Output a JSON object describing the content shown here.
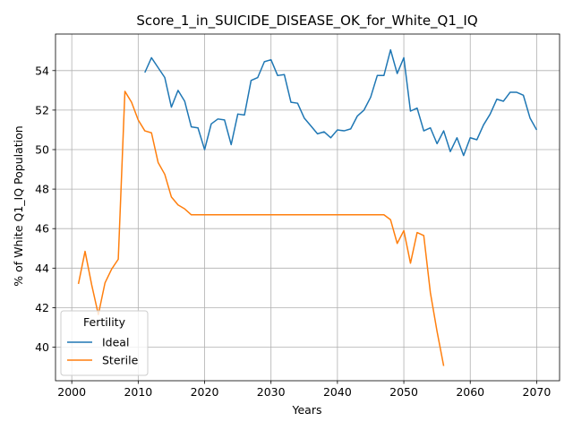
{
  "chart_data": {
    "type": "line",
    "title": "Score_1_in_SUICIDE_DISEASE_OK_for_White_Q1_IQ",
    "xlabel": "Years",
    "ylabel": "% of White Q1_IQ Population",
    "xlim": [
      1997.55,
      2073.45
    ],
    "ylim": [
      38.3,
      55.85
    ],
    "xticks": [
      2000,
      2010,
      2020,
      2030,
      2040,
      2050,
      2060,
      2070
    ],
    "yticks": [
      40,
      42,
      44,
      46,
      48,
      50,
      52,
      54
    ],
    "grid": true,
    "legend": {
      "title": "Fertility",
      "placement": "lower-left"
    },
    "series": [
      {
        "name": "Ideal",
        "color": "#1f77b4",
        "x": [
          2011,
          2012,
          2013,
          2014,
          2015,
          2016,
          2017,
          2018,
          2019,
          2020,
          2021,
          2022,
          2023,
          2024,
          2025,
          2026,
          2027,
          2028,
          2029,
          2030,
          2031,
          2032,
          2033,
          2034,
          2035,
          2036,
          2037,
          2038,
          2039,
          2040,
          2041,
          2042,
          2043,
          2044,
          2045,
          2046,
          2047,
          2048,
          2049,
          2050,
          2051,
          2052,
          2053,
          2054,
          2055,
          2056,
          2057,
          2058,
          2059,
          2060,
          2061,
          2062,
          2063,
          2064,
          2065,
          2066,
          2067,
          2068,
          2069,
          2070
        ],
        "y": [
          53.9,
          54.65,
          54.15,
          53.65,
          52.15,
          53.0,
          52.45,
          51.15,
          51.1,
          50.0,
          51.3,
          51.55,
          51.5,
          50.25,
          51.8,
          51.75,
          53.5,
          53.65,
          54.45,
          54.55,
          53.75,
          53.8,
          52.4,
          52.35,
          51.6,
          51.2,
          50.8,
          50.9,
          50.6,
          51.0,
          50.95,
          51.05,
          51.7,
          52.0,
          52.65,
          53.75,
          53.75,
          55.05,
          53.85,
          54.65,
          51.95,
          52.1,
          50.95,
          51.1,
          50.3,
          50.95,
          49.9,
          50.6,
          49.7,
          50.6,
          50.5,
          51.25,
          51.8,
          52.55,
          52.45,
          52.9,
          52.9,
          52.75,
          51.6,
          51.0
        ]
      },
      {
        "name": "Sterile",
        "color": "#ff7f0e",
        "x": [
          2001,
          2002,
          2003,
          2004,
          2005,
          2006,
          2007,
          2008,
          2009,
          2010,
          2011,
          2012,
          2013,
          2014,
          2015,
          2016,
          2017,
          2018,
          2019,
          2020,
          2030,
          2040,
          2047,
          2048,
          2049,
          2050,
          2051,
          2052,
          2053,
          2054,
          2055,
          2056
        ],
        "y": [
          43.2,
          44.85,
          43.15,
          41.65,
          43.25,
          43.95,
          44.45,
          52.95,
          52.4,
          51.5,
          50.95,
          50.85,
          49.35,
          48.75,
          47.6,
          47.2,
          47.0,
          46.7,
          46.7,
          46.7,
          46.7,
          46.7,
          46.7,
          46.45,
          45.25,
          45.9,
          44.25,
          45.8,
          45.65,
          42.75,
          40.8,
          39.05
        ]
      }
    ]
  }
}
